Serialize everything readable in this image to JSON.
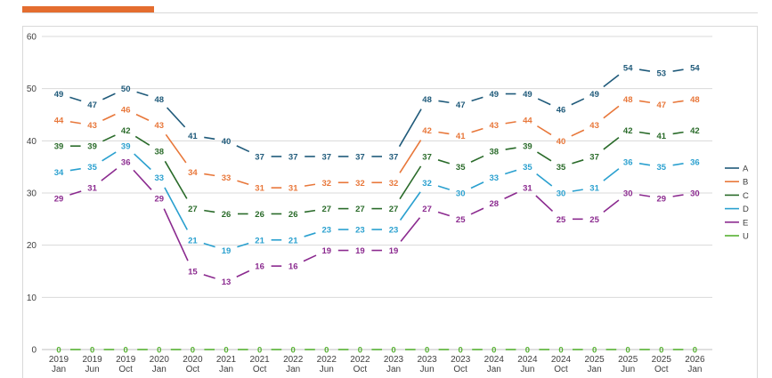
{
  "colors": {
    "accent": "#e46d2f",
    "A": "#1f5a7a",
    "B": "#e8773a",
    "C": "#2a6b2a",
    "D": "#2aa0cf",
    "E": "#8b2a8f",
    "U": "#55b030"
  },
  "chart_data": {
    "type": "line",
    "title": "",
    "xlabel": "",
    "ylabel": "",
    "ylim": [
      0,
      60
    ],
    "yticks": [
      0,
      10,
      20,
      30,
      40,
      50,
      60
    ],
    "grid": true,
    "legend_position": "right",
    "categories": [
      [
        "2019",
        "Jan"
      ],
      [
        "2019",
        "Jun"
      ],
      [
        "2019",
        "Oct"
      ],
      [
        "2020",
        "Jan"
      ],
      [
        "2020",
        "Oct"
      ],
      [
        "2021",
        "Jan"
      ],
      [
        "2021",
        "Oct"
      ],
      [
        "2022",
        "Jan"
      ],
      [
        "2022",
        "Jun"
      ],
      [
        "2022",
        "Oct"
      ],
      [
        "2023",
        "Jan"
      ],
      [
        "2023",
        "Jun"
      ],
      [
        "2023",
        "Oct"
      ],
      [
        "2024",
        "Jan"
      ],
      [
        "2024",
        "Jun"
      ],
      [
        "2024",
        "Oct"
      ],
      [
        "2025",
        "Jan"
      ],
      [
        "2025",
        "Jun"
      ],
      [
        "2025",
        "Oct"
      ],
      [
        "2026",
        "Jan"
      ]
    ],
    "series": [
      {
        "name": "A",
        "values": [
          49,
          47,
          50,
          48,
          41,
          40,
          37,
          37,
          37,
          37,
          37,
          48,
          47,
          49,
          49,
          46,
          49,
          54,
          53,
          54
        ]
      },
      {
        "name": "B",
        "values": [
          44,
          43,
          46,
          43,
          34,
          33,
          31,
          31,
          32,
          32,
          32,
          42,
          41,
          43,
          44,
          40,
          43,
          48,
          47,
          48
        ]
      },
      {
        "name": "C",
        "values": [
          39,
          39,
          42,
          38,
          27,
          26,
          26,
          26,
          27,
          27,
          27,
          37,
          35,
          38,
          39,
          35,
          37,
          42,
          41,
          42
        ]
      },
      {
        "name": "D",
        "values": [
          34,
          35,
          39,
          33,
          21,
          19,
          21,
          21,
          23,
          23,
          23,
          32,
          30,
          33,
          35,
          30,
          31,
          36,
          35,
          36
        ]
      },
      {
        "name": "E",
        "values": [
          29,
          31,
          36,
          29,
          15,
          13,
          16,
          16,
          19,
          19,
          19,
          27,
          25,
          28,
          31,
          25,
          25,
          30,
          29,
          30
        ]
      },
      {
        "name": "U",
        "values": [
          0,
          0,
          0,
          0,
          0,
          0,
          0,
          0,
          0,
          0,
          0,
          0,
          0,
          0,
          0,
          0,
          0,
          0,
          0,
          0
        ]
      }
    ]
  }
}
